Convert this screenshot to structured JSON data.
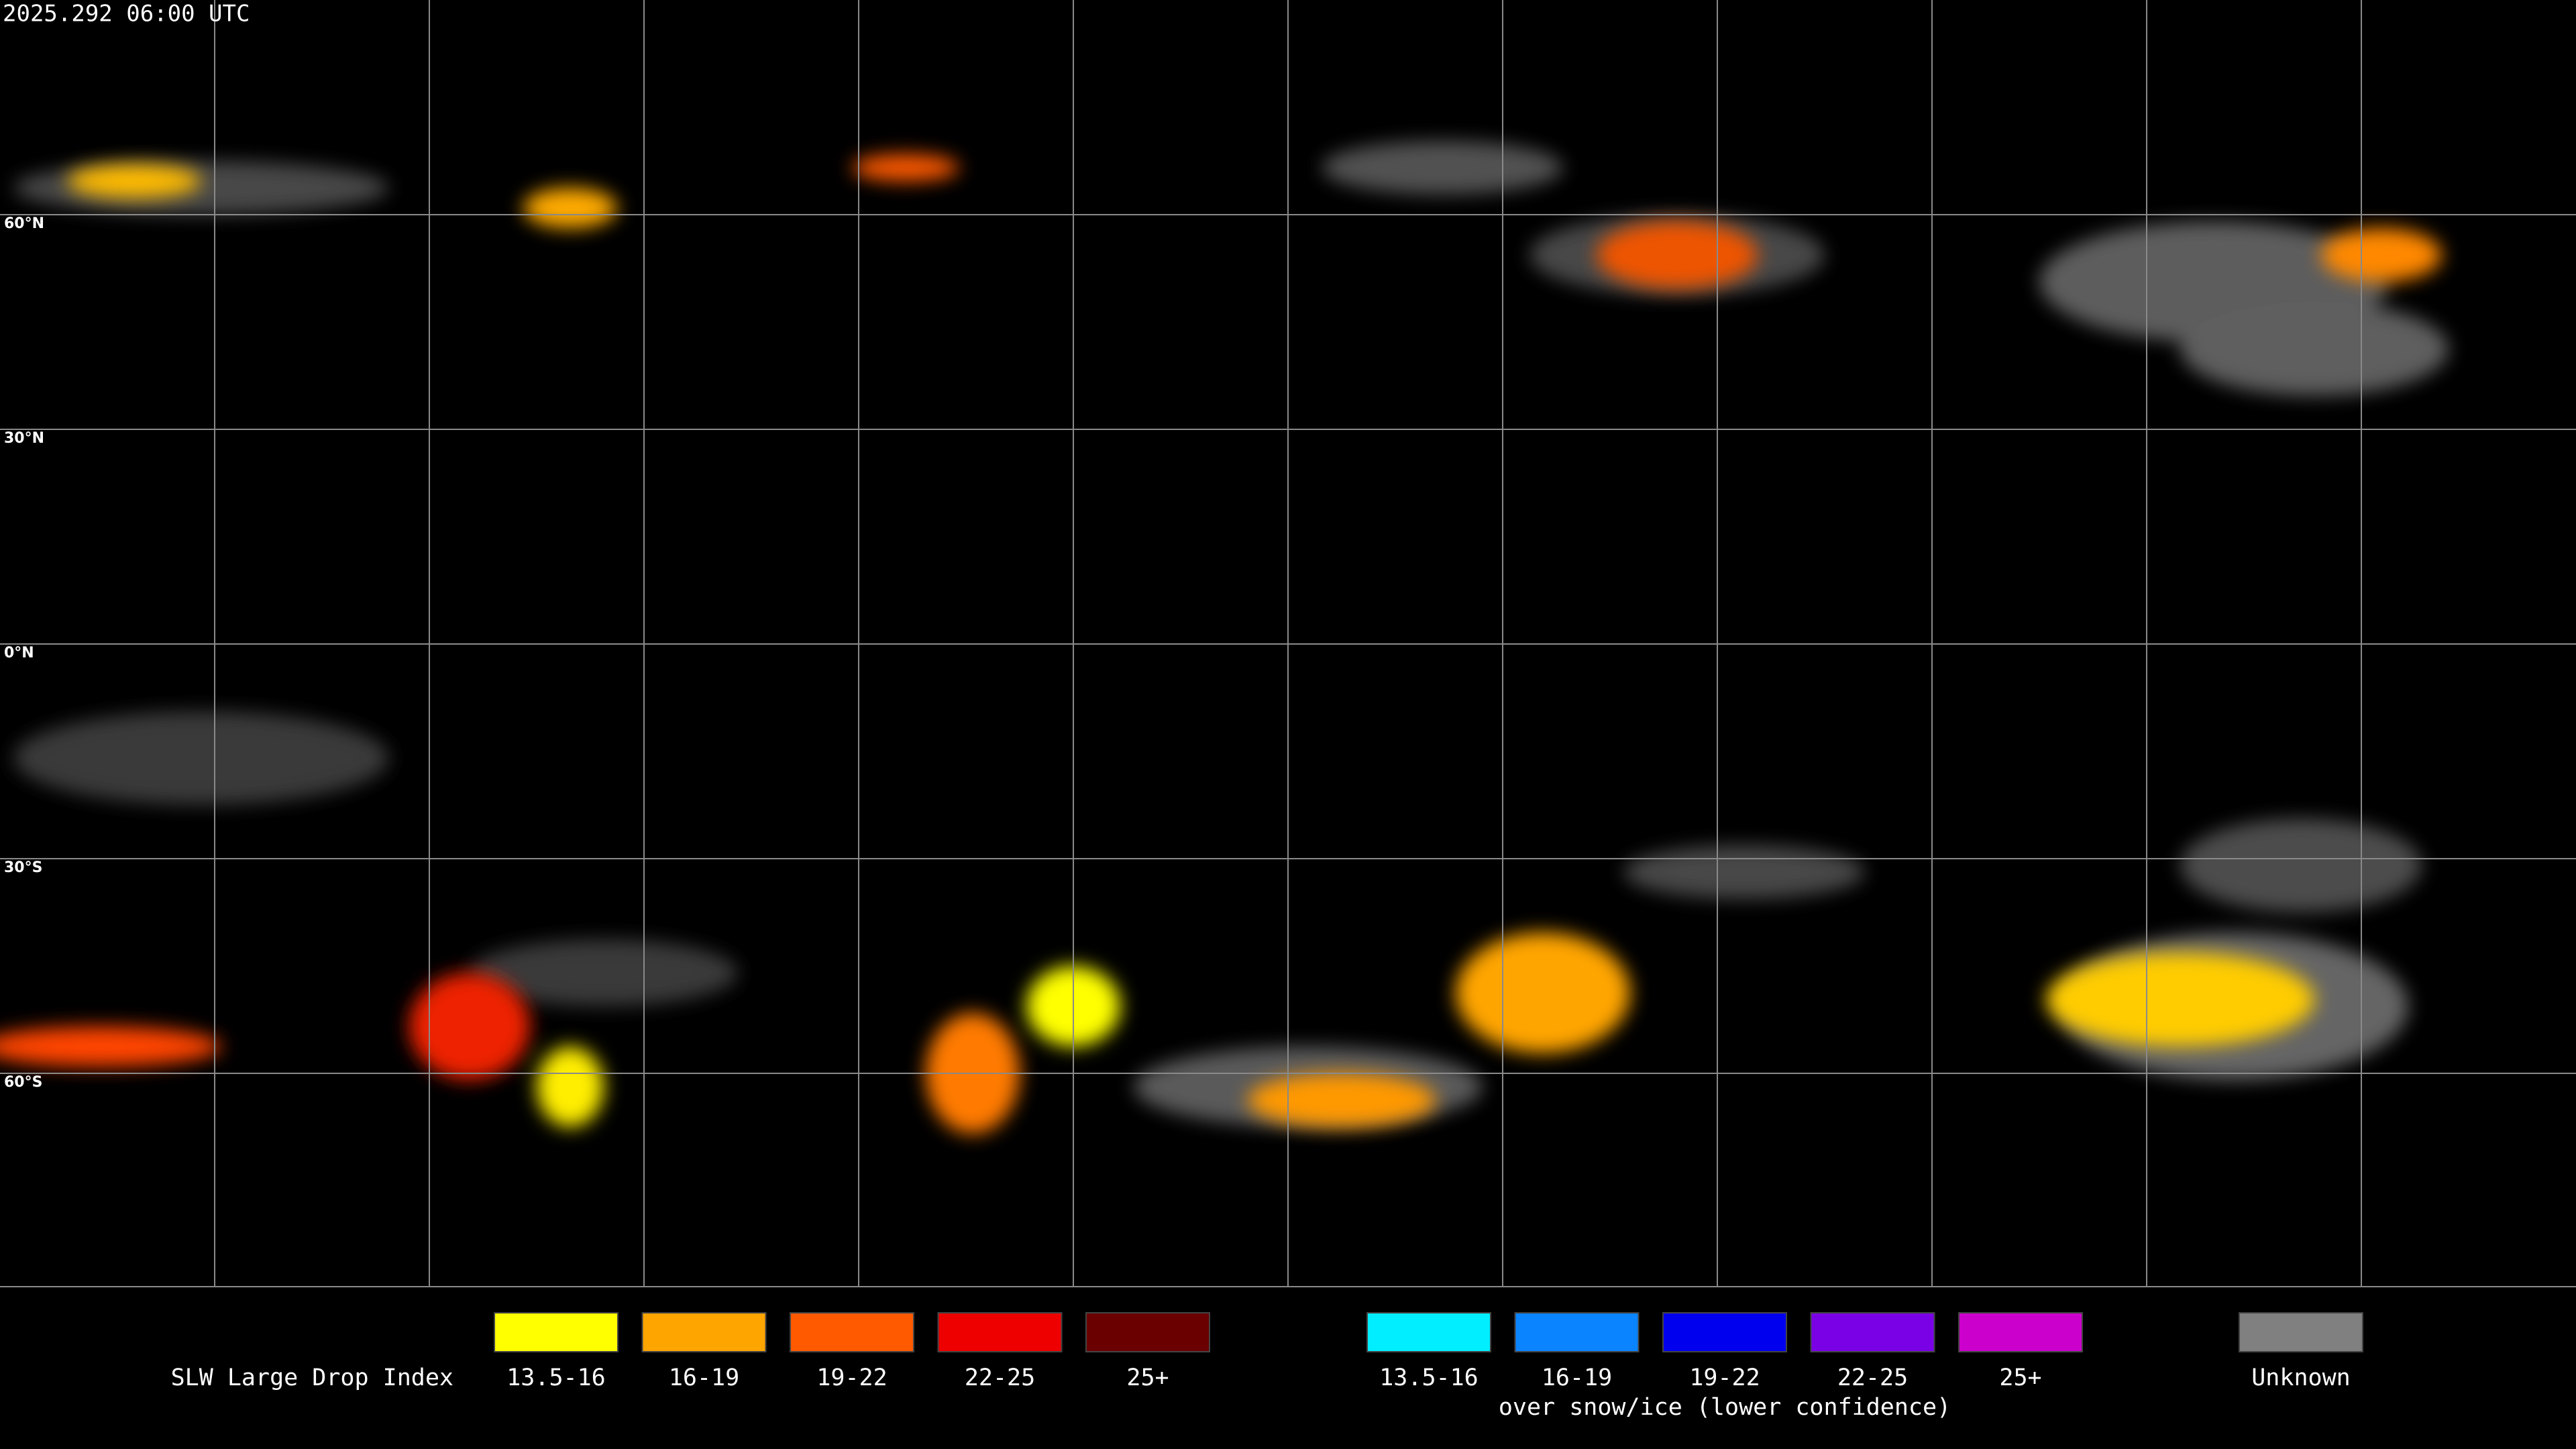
{
  "title": "2025.292 06:00 UTC",
  "latitude_labels": [
    "60°N",
    "30°N",
    "0°N",
    "30°S",
    "60°S"
  ],
  "legend": {
    "title": "SLW Large Drop Index",
    "groups": [
      {
        "items": [
          {
            "label": "13.5-16",
            "color": "#ffff00"
          },
          {
            "label": "16-19",
            "color": "#ffa500"
          },
          {
            "label": "19-22",
            "color": "#ff5a00"
          },
          {
            "label": "22-25",
            "color": "#ee0000"
          },
          {
            "label": "25+",
            "color": "#6a0000"
          }
        ]
      },
      {
        "caption": "over snow/ice (lower confidence)",
        "items": [
          {
            "label": "13.5-16",
            "color": "#00eeff"
          },
          {
            "label": "16-19",
            "color": "#0a84ff"
          },
          {
            "label": "19-22",
            "color": "#0000ee"
          },
          {
            "label": "22-25",
            "color": "#7a00e6"
          },
          {
            "label": "25+",
            "color": "#cc00cc"
          }
        ]
      },
      {
        "items": [
          {
            "label": "Unknown",
            "color": "#808080"
          }
        ]
      }
    ]
  }
}
